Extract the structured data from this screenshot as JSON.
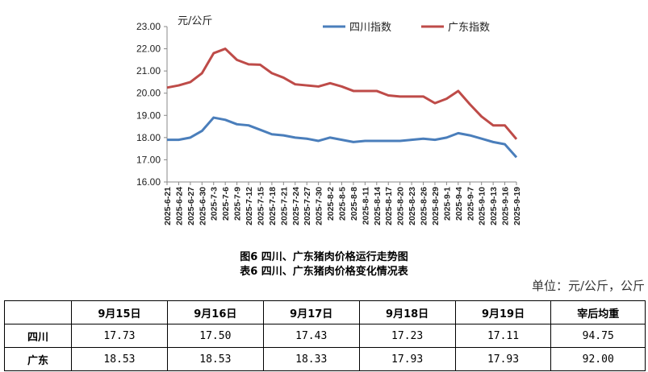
{
  "chart_data": {
    "type": "line",
    "unit_label": "元/公斤",
    "ylim": [
      16,
      23
    ],
    "yticks": [
      "16.00",
      "17.00",
      "18.00",
      "19.00",
      "20.00",
      "21.00",
      "22.00",
      "23.00"
    ],
    "x": [
      "2025-6-21",
      "2025-6-24",
      "2025-6-27",
      "2025-6-30",
      "2025-7-3",
      "2025-7-6",
      "2025-7-9",
      "2025-7-12",
      "2025-7-15",
      "2025-7-18",
      "2025-7-21",
      "2025-7-24",
      "2025-7-27",
      "2025-7-30",
      "2025-8-2",
      "2025-8-5",
      "2025-8-8",
      "2025-8-11",
      "2025-8-14",
      "2025-8-17",
      "2025-8-20",
      "2025-8-23",
      "2025-8-26",
      "2025-8-29",
      "2025-9-1",
      "2025-9-4",
      "2025-9-7",
      "2025-9-10",
      "2025-9-13",
      "2025-9-16",
      "2025-9-19"
    ],
    "series": [
      {
        "name": "四川指数",
        "color": "#4a7ebb",
        "values": [
          17.9,
          17.9,
          18.0,
          18.3,
          18.9,
          18.8,
          18.6,
          18.55,
          18.35,
          18.15,
          18.1,
          18.0,
          17.95,
          17.85,
          18.0,
          17.9,
          17.8,
          17.85,
          17.85,
          17.85,
          17.85,
          17.9,
          17.95,
          17.9,
          18.0,
          18.2,
          18.1,
          17.95,
          17.8,
          17.7,
          17.11
        ]
      },
      {
        "name": "广东指数",
        "color": "#be4b48",
        "values": [
          20.25,
          20.35,
          20.5,
          20.9,
          21.8,
          22.0,
          21.5,
          21.3,
          21.28,
          20.9,
          20.7,
          20.4,
          20.35,
          20.3,
          20.45,
          20.3,
          20.1,
          20.1,
          20.1,
          19.9,
          19.85,
          19.85,
          19.85,
          19.55,
          19.75,
          20.1,
          19.5,
          18.95,
          18.55,
          18.55,
          17.93
        ]
      }
    ]
  },
  "captions": {
    "fig": "图6 四川、广东猪肉价格运行走势图",
    "table": "表6 四川、广东猪肉价格变化情况表",
    "unit": "单位：元/公斤，公斤"
  },
  "table": {
    "headers": [
      "",
      "9月15日",
      "9月16日",
      "9月17日",
      "9月18日",
      "9月19日",
      "宰后均重"
    ],
    "rows": [
      [
        "四川",
        "17.73",
        "17.50",
        "17.43",
        "17.23",
        "17.11",
        "94.75"
      ],
      [
        "广东",
        "18.53",
        "18.53",
        "18.33",
        "17.93",
        "17.93",
        "92.00"
      ]
    ]
  }
}
